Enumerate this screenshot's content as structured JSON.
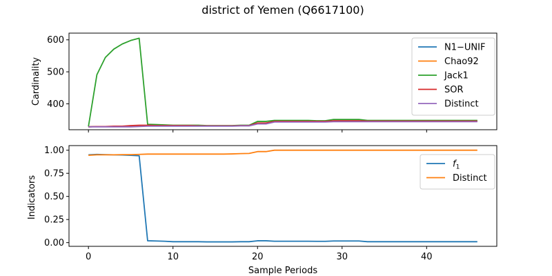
{
  "figure": {
    "title": "district of Yemen (Q6617100)",
    "xlabel": "Sample Periods"
  },
  "chart_data": [
    {
      "type": "line",
      "ylabel": "Cardinality",
      "xlim": [
        -2.3,
        48.3
      ],
      "ylim": [
        319,
        621
      ],
      "xticks": [
        0,
        10,
        20,
        30,
        40
      ],
      "show_xtick_labels": false,
      "yticks": [
        400,
        500,
        600
      ],
      "grid": false,
      "legend_position": "upper right",
      "x": [
        0,
        1,
        2,
        3,
        4,
        5,
        6,
        7,
        8,
        9,
        10,
        11,
        12,
        13,
        14,
        15,
        16,
        17,
        18,
        19,
        20,
        21,
        22,
        23,
        24,
        25,
        26,
        27,
        28,
        29,
        30,
        31,
        32,
        33,
        34,
        35,
        36,
        37,
        38,
        39,
        40,
        41,
        42,
        43,
        44,
        45,
        46
      ],
      "series": [
        {
          "name": "N1−UNIF",
          "color": "#1f77b4",
          "values": [
            328,
            329,
            329,
            329,
            330,
            330,
            331,
            331,
            331,
            331,
            331,
            331,
            331,
            331,
            331,
            331,
            331,
            331,
            332,
            332,
            339,
            339,
            345,
            345,
            345,
            345,
            345,
            345,
            345,
            346,
            346,
            346,
            346,
            346,
            346,
            346,
            346,
            346,
            346,
            346,
            346,
            346,
            346,
            346,
            346,
            346,
            346
          ]
        },
        {
          "name": "Chao92",
          "color": "#ff7f0e",
          "values": [
            328,
            329,
            329,
            329,
            330,
            330,
            331,
            331,
            331,
            331,
            331,
            331,
            331,
            331,
            331,
            331,
            331,
            331,
            332,
            332,
            339,
            339,
            345,
            345,
            345,
            345,
            345,
            345,
            345,
            346,
            346,
            346,
            346,
            346,
            346,
            346,
            346,
            346,
            346,
            346,
            346,
            346,
            346,
            346,
            346,
            346,
            346
          ]
        },
        {
          "name": "Jack1",
          "color": "#2ca02c",
          "values": [
            329,
            491,
            545,
            571,
            587,
            598,
            605,
            336,
            335,
            334,
            333,
            333,
            333,
            333,
            332,
            332,
            332,
            332,
            333,
            333,
            345,
            345,
            348,
            348,
            348,
            348,
            348,
            347,
            347,
            351,
            351,
            351,
            351,
            348,
            348,
            348,
            348,
            348,
            348,
            348,
            348,
            348,
            348,
            348,
            348,
            348,
            348
          ]
        },
        {
          "name": "SOR",
          "color": "#d62728",
          "values": [
            328,
            329,
            329,
            330,
            330,
            332,
            333,
            333,
            332,
            332,
            332,
            332,
            332,
            331,
            331,
            331,
            331,
            331,
            332,
            332,
            340,
            340,
            345,
            345,
            345,
            345,
            345,
            345,
            345,
            347,
            347,
            347,
            347,
            346,
            346,
            346,
            346,
            346,
            346,
            346,
            346,
            346,
            346,
            346,
            346,
            346,
            346
          ]
        },
        {
          "name": "Distinct",
          "color": "#9467bd",
          "values": [
            328,
            328,
            328,
            328,
            328,
            328,
            329,
            330,
            330,
            330,
            330,
            330,
            330,
            330,
            330,
            330,
            330,
            330,
            331,
            331,
            337,
            337,
            343,
            343,
            343,
            343,
            343,
            343,
            343,
            344,
            344,
            344,
            344,
            344,
            344,
            344,
            344,
            344,
            344,
            344,
            344,
            344,
            344,
            344,
            344,
            344,
            344
          ]
        }
      ]
    },
    {
      "type": "line",
      "ylabel": "Indicators",
      "xlim": [
        -2.3,
        48.3
      ],
      "ylim": [
        -0.04,
        1.05
      ],
      "xticks": [
        0,
        10,
        20,
        30,
        40
      ],
      "show_xtick_labels": true,
      "yticks": [
        0.0,
        0.25,
        0.5,
        0.75,
        1.0
      ],
      "ytick_labels": [
        "0.00",
        "0.25",
        "0.50",
        "0.75",
        "1.00"
      ],
      "grid": false,
      "legend_position": "upper right",
      "x": [
        0,
        1,
        2,
        3,
        4,
        5,
        6,
        7,
        8,
        9,
        10,
        11,
        12,
        13,
        14,
        15,
        16,
        17,
        18,
        19,
        20,
        21,
        22,
        23,
        24,
        25,
        26,
        27,
        28,
        29,
        30,
        31,
        32,
        33,
        34,
        35,
        36,
        37,
        38,
        39,
        40,
        41,
        42,
        43,
        44,
        45,
        46
      ],
      "series": [
        {
          "name": "f1",
          "color": "#1f77b4",
          "values": [
            0.95,
            0.955,
            0.952,
            0.95,
            0.948,
            0.945,
            0.94,
            0.02,
            0.018,
            0.015,
            0.01,
            0.01,
            0.01,
            0.01,
            0.008,
            0.008,
            0.008,
            0.008,
            0.01,
            0.01,
            0.02,
            0.02,
            0.015,
            0.015,
            0.015,
            0.015,
            0.015,
            0.014,
            0.014,
            0.018,
            0.018,
            0.018,
            0.018,
            0.01,
            0.01,
            0.01,
            0.01,
            0.01,
            0.01,
            0.01,
            0.01,
            0.01,
            0.01,
            0.01,
            0.01,
            0.01,
            0.01
          ]
        },
        {
          "name": "Distinct",
          "color": "#ff7f0e",
          "values": [
            0.945,
            0.95,
            0.95,
            0.95,
            0.952,
            0.952,
            0.955,
            0.958,
            0.958,
            0.958,
            0.958,
            0.958,
            0.958,
            0.958,
            0.958,
            0.958,
            0.958,
            0.96,
            0.963,
            0.965,
            0.985,
            0.985,
            1.0,
            1.0,
            1.0,
            1.0,
            1.0,
            1.0,
            1.0,
            1.0,
            1.0,
            1.0,
            1.0,
            1.0,
            1.0,
            1.0,
            1.0,
            1.0,
            1.0,
            1.0,
            1.0,
            1.0,
            1.0,
            1.0,
            1.0,
            1.0,
            1.0
          ]
        }
      ]
    }
  ]
}
